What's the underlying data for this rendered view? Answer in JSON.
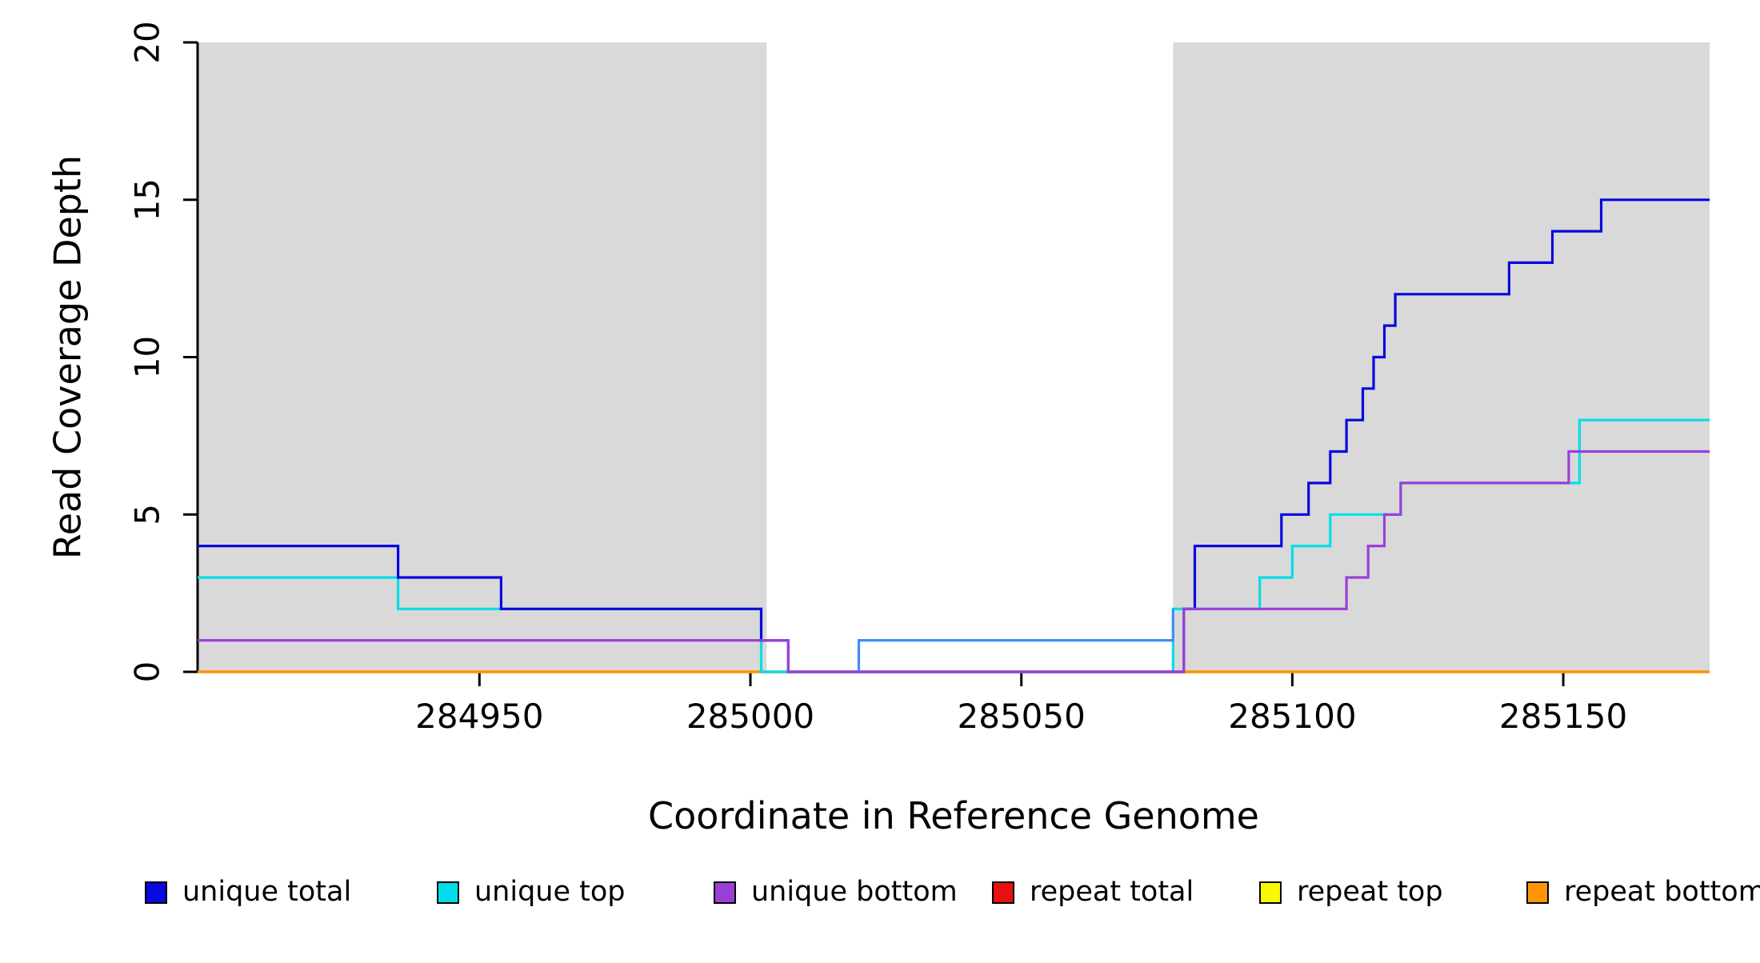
{
  "figure": {
    "background": "#ffffff",
    "axis_color": "#000000"
  },
  "chart_data": {
    "type": "line",
    "subtype": "step",
    "title": "",
    "xlabel": "Coordinate in Reference Genome",
    "ylabel": "Read Coverage Depth",
    "xlim": [
      284898,
      285177
    ],
    "ylim": [
      0,
      20
    ],
    "xticks": [
      284950,
      285000,
      285050,
      285100,
      285150
    ],
    "yticks": [
      0,
      5,
      10,
      15,
      20
    ],
    "grid": false,
    "legend_position": "bottom-horizontal",
    "shaded_regions": [
      {
        "x0": 284898,
        "x1": 285003,
        "color": "#d9d9d9"
      },
      {
        "x0": 285078,
        "x1": 285177,
        "color": "#d9d9d9"
      }
    ],
    "series": [
      {
        "name": "unique total",
        "color": "#0808e0",
        "in_legend": true,
        "steps": [
          [
            284898,
            4
          ],
          [
            284935,
            3
          ],
          [
            284954,
            2
          ],
          [
            285002,
            1
          ],
          [
            285007,
            0
          ],
          [
            285080,
            2
          ],
          [
            285082,
            4
          ],
          [
            285098,
            5
          ],
          [
            285103,
            6
          ],
          [
            285107,
            7
          ],
          [
            285110,
            8
          ],
          [
            285113,
            9
          ],
          [
            285115,
            10
          ],
          [
            285117,
            11
          ],
          [
            285119,
            12
          ],
          [
            285140,
            13
          ],
          [
            285148,
            14
          ],
          [
            285157,
            15
          ]
        ]
      },
      {
        "name": "unique top",
        "color": "#00dfe8",
        "in_legend": true,
        "steps": [
          [
            284898,
            3
          ],
          [
            284935,
            2
          ],
          [
            285002,
            0
          ],
          [
            285078,
            2
          ],
          [
            285094,
            3
          ],
          [
            285100,
            4
          ],
          [
            285107,
            5
          ],
          [
            285120,
            6
          ],
          [
            285153,
            8
          ]
        ]
      },
      {
        "name": "unique bottom",
        "color": "#9b3fd9",
        "in_legend": true,
        "steps": [
          [
            284898,
            1
          ],
          [
            285007,
            0
          ],
          [
            285080,
            2
          ],
          [
            285110,
            3
          ],
          [
            285114,
            4
          ],
          [
            285117,
            5
          ],
          [
            285120,
            6
          ],
          [
            285151,
            7
          ]
        ]
      },
      {
        "name": "repeat total",
        "color": "#e81010",
        "in_legend": true,
        "steps": [
          [
            284898,
            0
          ]
        ]
      },
      {
        "name": "repeat top",
        "color": "#f8f800",
        "in_legend": true,
        "steps": [
          [
            284898,
            0
          ]
        ]
      },
      {
        "name": "repeat bottom",
        "color": "#ff9505",
        "in_legend": true,
        "steps": [
          [
            284898,
            0
          ]
        ]
      },
      {
        "name": "unique total gap segment",
        "color": "#3e8ef0",
        "in_legend": false,
        "steps": [
          [
            285020,
            0
          ],
          [
            285020,
            1
          ],
          [
            285078,
            2
          ]
        ],
        "end_x": 285078
      }
    ],
    "draw_order": [
      "repeat total",
      "repeat top",
      "repeat bottom",
      "unique top",
      "unique total",
      "unique total gap segment",
      "unique bottom"
    ],
    "legend_labels": [
      "unique total",
      "unique top",
      "unique bottom",
      "repeat total",
      "repeat top",
      "repeat bottom"
    ]
  }
}
